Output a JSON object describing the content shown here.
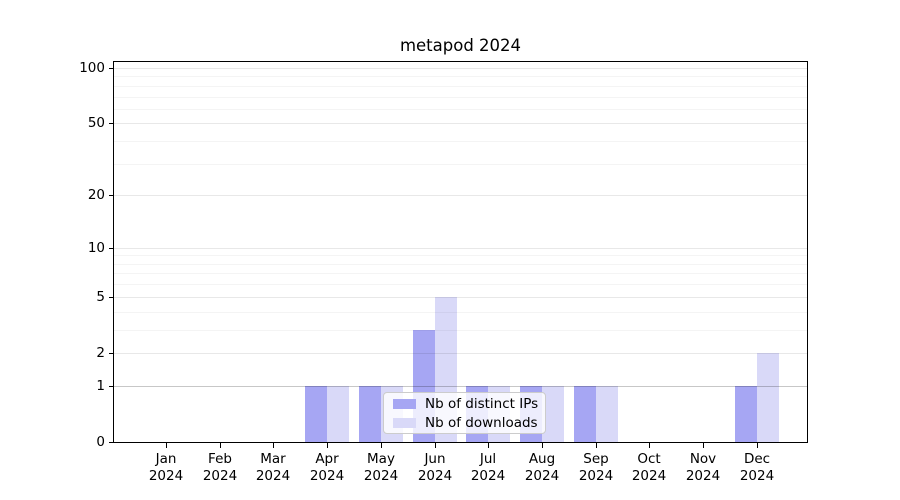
{
  "title": "metapod 2024",
  "chart_data": {
    "type": "bar",
    "title": "metapod 2024",
    "categories": [
      "Jan 2024",
      "Feb 2024",
      "Mar 2024",
      "Apr 2024",
      "May 2024",
      "Jun 2024",
      "Jul 2024",
      "Aug 2024",
      "Sep 2024",
      "Oct 2024",
      "Nov 2024",
      "Dec 2024"
    ],
    "x_tick_month": [
      "Jan",
      "Feb",
      "Mar",
      "Apr",
      "May",
      "Jun",
      "Jul",
      "Aug",
      "Sep",
      "Oct",
      "Nov",
      "Dec"
    ],
    "x_tick_year": "2024",
    "series": [
      {
        "name": "Nb of distinct IPs",
        "color": "#a6a6f3",
        "values": [
          0,
          0,
          0,
          1,
          1,
          3,
          1,
          1,
          1,
          0,
          0,
          1
        ]
      },
      {
        "name": "Nb of downloads",
        "color": "#d9d9f8",
        "values": [
          0,
          0,
          0,
          1,
          1,
          5,
          1,
          1,
          1,
          0,
          0,
          2
        ]
      }
    ],
    "xlabel": "",
    "ylabel": "",
    "yscale": "log(1+y)",
    "ylim": [
      0,
      110
    ],
    "y_major_ticks": [
      0,
      1,
      2,
      5,
      10,
      20,
      50,
      100
    ],
    "y_minor_ticks": [
      3,
      4,
      6,
      7,
      8,
      9,
      30,
      40,
      60,
      70,
      80,
      90
    ],
    "grid": "horizontal",
    "legend_position": "lower center",
    "colors": {
      "grid_major": "rgba(0,0,0,0.09)",
      "grid_minor": "rgba(0,0,0,0.045)",
      "grid_unit_line": "rgba(0,0,0,0.22)",
      "spine": "#000000",
      "background": "#ffffff"
    }
  }
}
